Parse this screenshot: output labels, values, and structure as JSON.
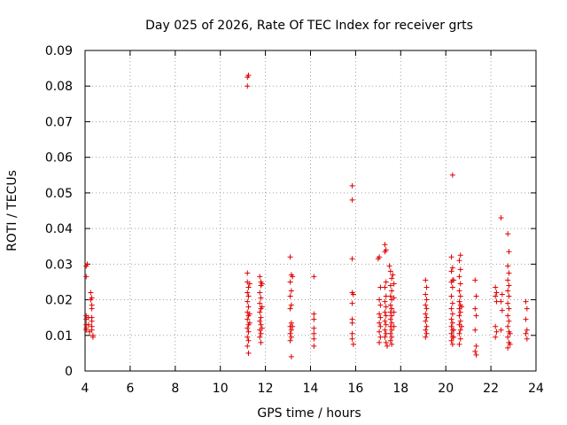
{
  "chart_data": {
    "type": "scatter",
    "title": "Day 025 of 2026, Rate Of TEC Index for receiver grts",
    "xlabel": "GPS time / hours",
    "ylabel": "ROTI / TECUs",
    "xlim": [
      4,
      24
    ],
    "ylim": [
      0,
      0.09
    ],
    "xticks": [
      "4",
      "6",
      "8",
      "10",
      "12",
      "14",
      "16",
      "18",
      "20",
      "22",
      "24"
    ],
    "yticks": [
      "0",
      "0.01",
      "0.02",
      "0.03",
      "0.04",
      "0.05",
      "0.06",
      "0.07",
      "0.08",
      "0.09"
    ],
    "grid": true,
    "marker": "+",
    "color": "#e00000",
    "series": [
      {
        "points": [
          [
            4.05,
            0.0295
          ],
          [
            4.05,
            0.0265
          ],
          [
            4.05,
            0.0155
          ],
          [
            4.05,
            0.0145
          ],
          [
            4.05,
            0.013
          ],
          [
            4.05,
            0.012
          ],
          [
            4.05,
            0.0115
          ],
          [
            4.1,
            0.03
          ],
          [
            4.15,
            0.015
          ],
          [
            4.15,
            0.013
          ],
          [
            4.2,
            0.011
          ],
          [
            4.25,
            0.022
          ],
          [
            4.25,
            0.02
          ],
          [
            4.3,
            0.0185
          ],
          [
            4.3,
            0.0175
          ],
          [
            4.3,
            0.015
          ],
          [
            4.3,
            0.014
          ],
          [
            4.3,
            0.0125
          ],
          [
            4.3,
            0.0115
          ],
          [
            4.35,
            0.01
          ],
          [
            4.35,
            0.0095
          ],
          [
            4.3,
            0.0205
          ],
          [
            11.2,
            0.0825
          ],
          [
            11.25,
            0.083
          ],
          [
            11.2,
            0.08
          ],
          [
            11.2,
            0.0275
          ],
          [
            11.2,
            0.025
          ],
          [
            11.25,
            0.0235
          ],
          [
            11.2,
            0.022
          ],
          [
            11.25,
            0.021
          ],
          [
            11.2,
            0.0195
          ],
          [
            11.25,
            0.018
          ],
          [
            11.2,
            0.0165
          ],
          [
            11.25,
            0.0155
          ],
          [
            11.2,
            0.0145
          ],
          [
            11.25,
            0.013
          ],
          [
            11.2,
            0.012
          ],
          [
            11.25,
            0.011
          ],
          [
            11.2,
            0.0095
          ],
          [
            11.25,
            0.0085
          ],
          [
            11.2,
            0.007
          ],
          [
            11.25,
            0.005
          ],
          [
            11.3,
            0.0245
          ],
          [
            11.3,
            0.016
          ],
          [
            11.3,
            0.0135
          ],
          [
            11.75,
            0.0265
          ],
          [
            11.8,
            0.025
          ],
          [
            11.8,
            0.024
          ],
          [
            11.75,
            0.022
          ],
          [
            11.8,
            0.0205
          ],
          [
            11.75,
            0.019
          ],
          [
            11.8,
            0.0175
          ],
          [
            11.75,
            0.0165
          ],
          [
            11.8,
            0.015
          ],
          [
            11.75,
            0.014
          ],
          [
            11.8,
            0.013
          ],
          [
            11.75,
            0.0115
          ],
          [
            11.8,
            0.0105
          ],
          [
            11.75,
            0.0095
          ],
          [
            11.8,
            0.008
          ],
          [
            11.85,
            0.0245
          ],
          [
            11.85,
            0.018
          ],
          [
            11.85,
            0.012
          ],
          [
            13.1,
            0.032
          ],
          [
            13.15,
            0.027
          ],
          [
            13.1,
            0.025
          ],
          [
            13.15,
            0.0225
          ],
          [
            13.1,
            0.021
          ],
          [
            13.15,
            0.0185
          ],
          [
            13.1,
            0.0175
          ],
          [
            13.15,
            0.0135
          ],
          [
            13.1,
            0.0125
          ],
          [
            13.15,
            0.0115
          ],
          [
            13.1,
            0.0105
          ],
          [
            13.15,
            0.0095
          ],
          [
            13.1,
            0.0085
          ],
          [
            13.15,
            0.004
          ],
          [
            13.2,
            0.0265
          ],
          [
            13.2,
            0.0125
          ],
          [
            14.15,
            0.0265
          ],
          [
            14.15,
            0.016
          ],
          [
            14.15,
            0.0145
          ],
          [
            14.15,
            0.012
          ],
          [
            14.15,
            0.0105
          ],
          [
            14.15,
            0.009
          ],
          [
            14.15,
            0.007
          ],
          [
            15.85,
            0.052
          ],
          [
            15.85,
            0.048
          ],
          [
            15.85,
            0.0315
          ],
          [
            15.85,
            0.022
          ],
          [
            15.9,
            0.0215
          ],
          [
            15.85,
            0.019
          ],
          [
            15.85,
            0.0145
          ],
          [
            15.85,
            0.0135
          ],
          [
            15.85,
            0.0105
          ],
          [
            15.85,
            0.009
          ],
          [
            15.9,
            0.0075
          ],
          [
            17.0,
            0.0315
          ],
          [
            17.05,
            0.032
          ],
          [
            17.1,
            0.0235
          ],
          [
            17.05,
            0.02
          ],
          [
            17.1,
            0.0185
          ],
          [
            17.05,
            0.016
          ],
          [
            17.1,
            0.015
          ],
          [
            17.05,
            0.0135
          ],
          [
            17.1,
            0.0125
          ],
          [
            17.05,
            0.011
          ],
          [
            17.1,
            0.0095
          ],
          [
            17.05,
            0.008
          ],
          [
            17.3,
            0.0355
          ],
          [
            17.35,
            0.034
          ],
          [
            17.3,
            0.0335
          ],
          [
            17.35,
            0.025
          ],
          [
            17.3,
            0.0235
          ],
          [
            17.35,
            0.021
          ],
          [
            17.3,
            0.0195
          ],
          [
            17.35,
            0.018
          ],
          [
            17.3,
            0.0165
          ],
          [
            17.35,
            0.0155
          ],
          [
            17.3,
            0.014
          ],
          [
            17.35,
            0.013
          ],
          [
            17.3,
            0.0115
          ],
          [
            17.35,
            0.0105
          ],
          [
            17.3,
            0.0095
          ],
          [
            17.35,
            0.008
          ],
          [
            17.4,
            0.007
          ],
          [
            17.5,
            0.0295
          ],
          [
            17.55,
            0.028
          ],
          [
            17.6,
            0.026
          ],
          [
            17.55,
            0.024
          ],
          [
            17.6,
            0.0225
          ],
          [
            17.55,
            0.021
          ],
          [
            17.6,
            0.02
          ],
          [
            17.55,
            0.0185
          ],
          [
            17.6,
            0.0175
          ],
          [
            17.55,
            0.0165
          ],
          [
            17.6,
            0.0155
          ],
          [
            17.55,
            0.0145
          ],
          [
            17.6,
            0.0135
          ],
          [
            17.55,
            0.0125
          ],
          [
            17.6,
            0.0115
          ],
          [
            17.55,
            0.0105
          ],
          [
            17.6,
            0.0095
          ],
          [
            17.55,
            0.0085
          ],
          [
            17.6,
            0.0075
          ],
          [
            17.7,
            0.0245
          ],
          [
            17.7,
            0.0205
          ],
          [
            17.7,
            0.0165
          ],
          [
            17.7,
            0.0125
          ],
          [
            17.65,
            0.027
          ],
          [
            19.1,
            0.0255
          ],
          [
            19.15,
            0.0235
          ],
          [
            19.1,
            0.0215
          ],
          [
            19.15,
            0.02
          ],
          [
            19.1,
            0.0185
          ],
          [
            19.15,
            0.0175
          ],
          [
            19.1,
            0.016
          ],
          [
            19.15,
            0.015
          ],
          [
            19.1,
            0.014
          ],
          [
            19.15,
            0.0125
          ],
          [
            19.1,
            0.0115
          ],
          [
            19.15,
            0.0105
          ],
          [
            19.1,
            0.0095
          ],
          [
            20.3,
            0.055
          ],
          [
            20.25,
            0.032
          ],
          [
            20.3,
            0.029
          ],
          [
            20.25,
            0.028
          ],
          [
            20.3,
            0.0255
          ],
          [
            20.25,
            0.025
          ],
          [
            20.3,
            0.0235
          ],
          [
            20.25,
            0.021
          ],
          [
            20.3,
            0.019
          ],
          [
            20.25,
            0.0175
          ],
          [
            20.3,
            0.016
          ],
          [
            20.25,
            0.0145
          ],
          [
            20.3,
            0.0135
          ],
          [
            20.25,
            0.0125
          ],
          [
            20.3,
            0.0115
          ],
          [
            20.25,
            0.0105
          ],
          [
            20.3,
            0.0095
          ],
          [
            20.25,
            0.0085
          ],
          [
            20.3,
            0.0075
          ],
          [
            20.35,
            0.0255
          ],
          [
            20.35,
            0.0115
          ],
          [
            20.35,
            0.0095
          ],
          [
            20.65,
            0.0325
          ],
          [
            20.6,
            0.031
          ],
          [
            20.65,
            0.0285
          ],
          [
            20.6,
            0.0265
          ],
          [
            20.65,
            0.0245
          ],
          [
            20.6,
            0.0225
          ],
          [
            20.65,
            0.021
          ],
          [
            20.6,
            0.0195
          ],
          [
            20.65,
            0.0185
          ],
          [
            20.6,
            0.0175
          ],
          [
            20.65,
            0.0165
          ],
          [
            20.6,
            0.0155
          ],
          [
            20.65,
            0.014
          ],
          [
            20.6,
            0.013
          ],
          [
            20.65,
            0.0115
          ],
          [
            20.6,
            0.0105
          ],
          [
            20.65,
            0.009
          ],
          [
            20.6,
            0.0075
          ],
          [
            20.7,
            0.018
          ],
          [
            20.7,
            0.0125
          ],
          [
            21.3,
            0.0255
          ],
          [
            21.35,
            0.021
          ],
          [
            21.3,
            0.0175
          ],
          [
            21.35,
            0.0155
          ],
          [
            21.3,
            0.0115
          ],
          [
            21.35,
            0.007
          ],
          [
            21.3,
            0.0055
          ],
          [
            21.35,
            0.0045
          ],
          [
            22.2,
            0.0235
          ],
          [
            22.25,
            0.022
          ],
          [
            22.2,
            0.021
          ],
          [
            22.25,
            0.0195
          ],
          [
            22.2,
            0.0125
          ],
          [
            22.25,
            0.011
          ],
          [
            22.2,
            0.0095
          ],
          [
            22.45,
            0.043
          ],
          [
            22.5,
            0.0215
          ],
          [
            22.45,
            0.0195
          ],
          [
            22.5,
            0.017
          ],
          [
            22.45,
            0.0115
          ],
          [
            22.75,
            0.0385
          ],
          [
            22.8,
            0.0335
          ],
          [
            22.75,
            0.0295
          ],
          [
            22.8,
            0.0275
          ],
          [
            22.75,
            0.0255
          ],
          [
            22.8,
            0.024
          ],
          [
            22.75,
            0.0225
          ],
          [
            22.8,
            0.021
          ],
          [
            22.75,
            0.019
          ],
          [
            22.8,
            0.0175
          ],
          [
            22.75,
            0.0155
          ],
          [
            22.8,
            0.014
          ],
          [
            22.75,
            0.0125
          ],
          [
            22.8,
            0.011
          ],
          [
            22.75,
            0.0095
          ],
          [
            22.8,
            0.008
          ],
          [
            22.75,
            0.0065
          ],
          [
            22.85,
            0.0105
          ],
          [
            22.85,
            0.0075
          ],
          [
            23.55,
            0.0195
          ],
          [
            23.6,
            0.0175
          ],
          [
            23.55,
            0.0145
          ],
          [
            23.6,
            0.0115
          ],
          [
            23.55,
            0.0105
          ],
          [
            23.6,
            0.009
          ]
        ]
      }
    ]
  }
}
